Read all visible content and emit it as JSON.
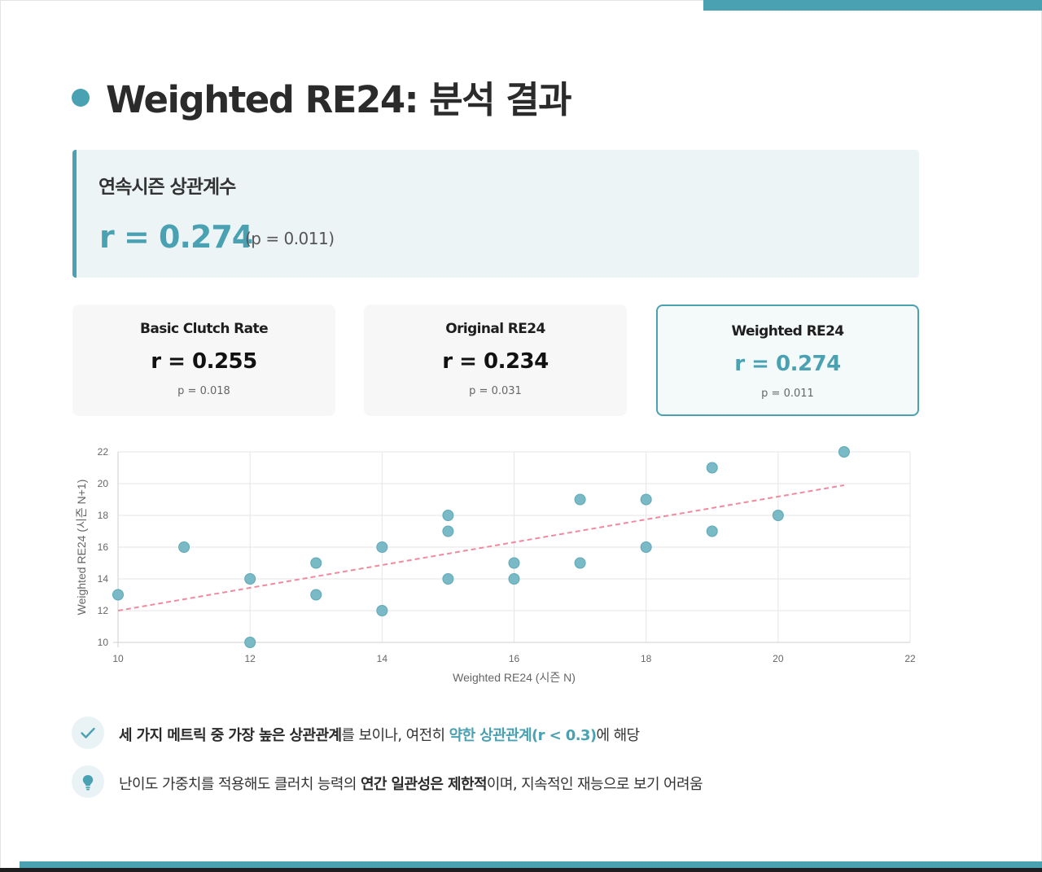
{
  "header": {
    "title": "Weighted RE24: 분석 결과"
  },
  "summary": {
    "label": "연속시즌 상관계수",
    "value": "r = 0.274",
    "p": "(p = 0.011)"
  },
  "cards": [
    {
      "label": "Basic Clutch Rate",
      "value": "r = 0.255",
      "p": "p = 0.018"
    },
    {
      "label": "Original RE24",
      "value": "r = 0.234",
      "p": "p = 0.031"
    },
    {
      "label": "Weighted RE24",
      "value": "r = 0.274",
      "p": "p = 0.011"
    }
  ],
  "colors": {
    "accent": "#4aa1b2",
    "trend": "#f08a9e",
    "highlight_bg": "#ecf4f6"
  },
  "chart_data": {
    "type": "scatter",
    "xlabel": "Weighted RE24 (시즌 N)",
    "ylabel": "Weighted RE24 (시즌 N+1)",
    "xlim": [
      10,
      22
    ],
    "ylim": [
      10,
      22
    ],
    "xticks": [
      10,
      12,
      14,
      16,
      18,
      20,
      22
    ],
    "yticks": [
      10,
      12,
      14,
      16,
      18,
      20,
      22
    ],
    "grid": true,
    "points": [
      [
        10,
        13
      ],
      [
        11,
        16
      ],
      [
        12,
        14
      ],
      [
        12,
        10
      ],
      [
        13,
        15
      ],
      [
        13,
        13
      ],
      [
        14,
        16
      ],
      [
        14,
        12
      ],
      [
        15,
        18
      ],
      [
        15,
        17
      ],
      [
        15,
        14
      ],
      [
        16,
        15
      ],
      [
        16,
        14
      ],
      [
        17,
        19
      ],
      [
        17,
        15
      ],
      [
        18,
        19
      ],
      [
        18,
        16
      ],
      [
        19,
        21
      ],
      [
        19,
        17
      ],
      [
        20,
        18
      ],
      [
        21,
        22
      ]
    ],
    "trendline": {
      "x": [
        10,
        21
      ],
      "y": [
        12.0,
        19.9
      ]
    }
  },
  "notes": [
    {
      "icon": "check-icon",
      "segments": [
        {
          "text": "세 가지 메트릭 중 가장 높은 상관관계",
          "style": "bold"
        },
        {
          "text": "를 보이나, 여전히 ",
          "style": "normal"
        },
        {
          "text": "약한 상관관계(r < 0.3)",
          "style": "teal"
        },
        {
          "text": "에 해당",
          "style": "normal"
        }
      ]
    },
    {
      "icon": "lightbulb-icon",
      "segments": [
        {
          "text": "난이도 가중치를 적용해도 클러치 능력의 ",
          "style": "normal"
        },
        {
          "text": "연간 일관성은 제한적",
          "style": "bold"
        },
        {
          "text": "이며, 지속적인 재능으로 보기 어려움",
          "style": "normal"
        }
      ]
    }
  ]
}
